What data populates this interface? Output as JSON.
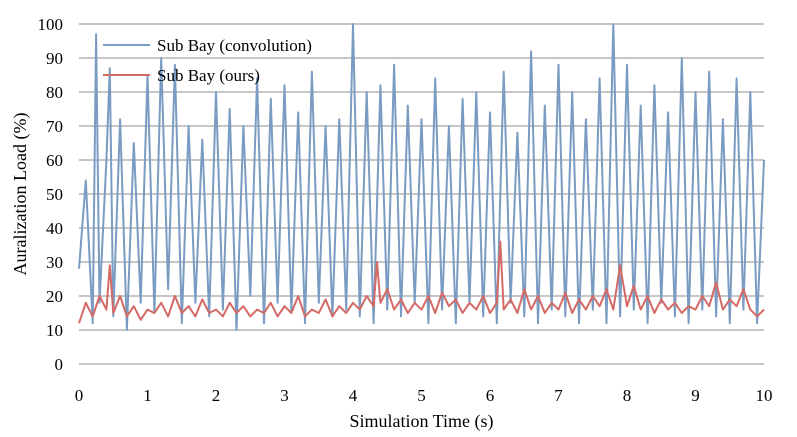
{
  "chart_data": {
    "type": "line",
    "title": "",
    "xlabel": "Simulation Time (s)",
    "ylabel": "Auralization Load (%)",
    "xlim": [
      0,
      10
    ],
    "ylim": [
      0,
      100
    ],
    "x_ticks": [
      "0",
      "1",
      "2",
      "3",
      "4",
      "5",
      "6",
      "7",
      "8",
      "9",
      "10"
    ],
    "y_ticks": [
      "0",
      "10",
      "20",
      "30",
      "40",
      "50",
      "60",
      "70",
      "80",
      "90",
      "100"
    ],
    "grid": "horizontal",
    "legend_position": "top-left",
    "series": [
      {
        "name": "Sub Bay (convolution)",
        "color": "#7a9cc2",
        "x": [
          0,
          0.1,
          0.2,
          0.25,
          0.3,
          0.4,
          0.45,
          0.5,
          0.6,
          0.7,
          0.8,
          0.9,
          1.0,
          1.1,
          1.2,
          1.3,
          1.4,
          1.5,
          1.6,
          1.7,
          1.8,
          1.9,
          2.0,
          2.1,
          2.2,
          2.3,
          2.4,
          2.5,
          2.6,
          2.7,
          2.8,
          2.9,
          3.0,
          3.1,
          3.2,
          3.3,
          3.4,
          3.5,
          3.6,
          3.7,
          3.8,
          3.9,
          4.0,
          4.1,
          4.2,
          4.3,
          4.4,
          4.5,
          4.6,
          4.7,
          4.8,
          4.9,
          5.0,
          5.1,
          5.2,
          5.3,
          5.4,
          5.5,
          5.6,
          5.7,
          5.8,
          5.9,
          6.0,
          6.1,
          6.2,
          6.3,
          6.4,
          6.5,
          6.6,
          6.7,
          6.8,
          6.9,
          7.0,
          7.1,
          7.2,
          7.3,
          7.4,
          7.5,
          7.6,
          7.7,
          7.8,
          7.9,
          8.0,
          8.1,
          8.2,
          8.3,
          8.4,
          8.5,
          8.6,
          8.7,
          8.8,
          8.9,
          9.0,
          9.1,
          9.2,
          9.3,
          9.4,
          9.5,
          9.6,
          9.7,
          9.8,
          9.9,
          10.0
        ],
        "values": [
          28,
          54,
          12,
          97,
          18,
          60,
          87,
          14,
          72,
          10,
          65,
          18,
          85,
          15,
          90,
          22,
          88,
          12,
          70,
          18,
          66,
          14,
          80,
          16,
          75,
          10,
          70,
          20,
          84,
          12,
          78,
          18,
          82,
          15,
          74,
          12,
          86,
          18,
          70,
          14,
          72,
          16,
          100,
          14,
          80,
          12,
          82,
          16,
          88,
          14,
          76,
          18,
          72,
          12,
          84,
          16,
          70,
          12,
          78,
          18,
          80,
          14,
          74,
          12,
          86,
          18,
          68,
          14,
          92,
          12,
          76,
          16,
          88,
          14,
          80,
          12,
          72,
          16,
          84,
          12,
          100,
          14,
          88,
          16,
          76,
          12,
          82,
          18,
          74,
          14,
          90,
          12,
          80,
          16,
          86,
          14,
          72,
          12,
          84,
          16,
          80,
          12,
          60
        ]
      },
      {
        "name": "Sub Bay (ours)",
        "color": "#d46a66",
        "x": [
          0,
          0.1,
          0.2,
          0.3,
          0.4,
          0.45,
          0.5,
          0.6,
          0.7,
          0.8,
          0.9,
          1.0,
          1.1,
          1.2,
          1.3,
          1.4,
          1.5,
          1.6,
          1.7,
          1.8,
          1.9,
          2.0,
          2.1,
          2.2,
          2.3,
          2.4,
          2.5,
          2.6,
          2.7,
          2.8,
          2.9,
          3.0,
          3.1,
          3.2,
          3.3,
          3.4,
          3.5,
          3.6,
          3.7,
          3.8,
          3.9,
          4.0,
          4.1,
          4.2,
          4.3,
          4.35,
          4.4,
          4.5,
          4.6,
          4.7,
          4.8,
          4.9,
          5.0,
          5.1,
          5.2,
          5.3,
          5.4,
          5.5,
          5.6,
          5.7,
          5.8,
          5.9,
          6.0,
          6.1,
          6.15,
          6.2,
          6.3,
          6.4,
          6.5,
          6.6,
          6.7,
          6.8,
          6.9,
          7.0,
          7.1,
          7.2,
          7.3,
          7.4,
          7.5,
          7.6,
          7.7,
          7.8,
          7.9,
          8.0,
          8.1,
          8.2,
          8.3,
          8.4,
          8.5,
          8.6,
          8.7,
          8.8,
          8.9,
          9.0,
          9.1,
          9.2,
          9.3,
          9.4,
          9.5,
          9.6,
          9.7,
          9.8,
          9.9,
          10.0
        ],
        "values": [
          12,
          18,
          14,
          20,
          16,
          29,
          15,
          20,
          14,
          17,
          13,
          16,
          15,
          18,
          14,
          20,
          15,
          17,
          14,
          19,
          15,
          16,
          14,
          18,
          15,
          17,
          14,
          16,
          15,
          18,
          14,
          17,
          15,
          20,
          14,
          16,
          15,
          19,
          14,
          17,
          15,
          18,
          16,
          20,
          17,
          30,
          18,
          22,
          16,
          19,
          15,
          18,
          16,
          20,
          15,
          21,
          17,
          19,
          15,
          18,
          16,
          20,
          15,
          18,
          36,
          16,
          19,
          15,
          22,
          16,
          20,
          15,
          18,
          16,
          21,
          15,
          19,
          16,
          20,
          17,
          22,
          16,
          29,
          17,
          23,
          16,
          20,
          15,
          19,
          16,
          18,
          15,
          17,
          16,
          20,
          17,
          24,
          16,
          19,
          17,
          22,
          16,
          14,
          16
        ]
      }
    ]
  }
}
